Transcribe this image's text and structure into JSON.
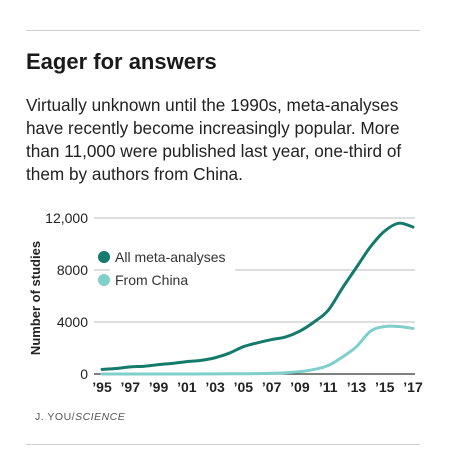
{
  "header": {
    "title": "Eager for answers",
    "description": "Virtually unknown until the 1990s, meta-analyses have recently become increasingly popular. More than 11,000 were published last year, one-third of them by authors from China."
  },
  "credit": {
    "author": "J. YOU/",
    "source": "SCIENCE"
  },
  "chart_data": {
    "type": "line",
    "ylabel": "Number of studies",
    "xlabel": "",
    "ylim": [
      0,
      12000
    ],
    "yticks": [
      0,
      4000,
      8000,
      12000
    ],
    "ytick_labels": [
      "0",
      "4000",
      "8000",
      "12,000"
    ],
    "xlim": [
      1995,
      2017
    ],
    "xticks": [
      1995,
      1997,
      1999,
      2001,
      2003,
      2005,
      2007,
      2009,
      2011,
      2013,
      2015,
      2017
    ],
    "xtick_labels": [
      "’95",
      "’97",
      "’99",
      "’01",
      "’03",
      "’05",
      "’07",
      "’09",
      "’11",
      "’13",
      "’15",
      "’17"
    ],
    "grid": true,
    "legend_position": "top-left",
    "series": [
      {
        "name": "All meta-analyses",
        "color": "#147a6c",
        "x": [
          1995,
          1996,
          1997,
          1998,
          1999,
          2000,
          2001,
          2002,
          2003,
          2004,
          2005,
          2006,
          2007,
          2008,
          2009,
          2010,
          2011,
          2012,
          2013,
          2014,
          2015,
          2016,
          2017
        ],
        "values": [
          350,
          420,
          550,
          600,
          720,
          820,
          950,
          1050,
          1250,
          1600,
          2100,
          2400,
          2650,
          2850,
          3300,
          4000,
          4900,
          6600,
          8200,
          9800,
          11000,
          11600,
          11300
        ]
      },
      {
        "name": "From China",
        "color": "#7fcfcb",
        "x": [
          1995,
          1996,
          1997,
          1998,
          1999,
          2000,
          2001,
          2002,
          2003,
          2004,
          2005,
          2006,
          2007,
          2008,
          2009,
          2010,
          2011,
          2012,
          2013,
          2014,
          2015,
          2016,
          2017
        ],
        "values": [
          0,
          0,
          0,
          0,
          0,
          0,
          0,
          5,
          10,
          15,
          20,
          30,
          60,
          100,
          180,
          350,
          650,
          1300,
          2100,
          3300,
          3650,
          3650,
          3500
        ]
      }
    ]
  }
}
